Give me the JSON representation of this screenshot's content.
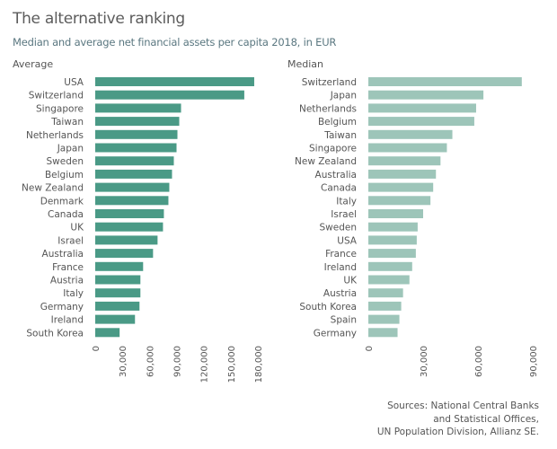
{
  "title": "The alternative ranking",
  "subtitle": "Median and average net financial assets per capita 2018, in EUR",
  "sources": [
    "Sources: National Central Banks",
    "and Statistical Offices,",
    "UN Population Division, Allianz SE."
  ],
  "colors": {
    "average": "#4a9a86",
    "median": "#9dc5b9"
  },
  "chart_data": [
    {
      "type": "bar",
      "orientation": "horizontal",
      "panel_label": "Average",
      "categories": [
        "USA",
        "Switzerland",
        "Singapore",
        "Taiwan",
        "Netherlands",
        "Japan",
        "Sweden",
        "Belgium",
        "New Zealand",
        "Denmark",
        "Canada",
        "UK",
        "Israel",
        "Australia",
        "France",
        "Austria",
        "Italy",
        "Germany",
        "Ireland",
        "South Korea"
      ],
      "values": [
        176000,
        165000,
        95000,
        93000,
        91000,
        90000,
        87000,
        85000,
        82000,
        81000,
        76000,
        75000,
        69000,
        64000,
        53000,
        50000,
        50000,
        49000,
        44000,
        27000
      ],
      "xlim": [
        0,
        180000
      ],
      "ticks": [
        0,
        30000,
        60000,
        90000,
        120000,
        150000,
        180000
      ],
      "tick_labels": [
        "0",
        "30,000",
        "60,000",
        "90,000",
        "120,000",
        "150,000",
        "180,000"
      ],
      "grid": false
    },
    {
      "type": "bar",
      "orientation": "horizontal",
      "panel_label": "Median",
      "categories": [
        "Switzerland",
        "Japan",
        "Netherlands",
        "Belgium",
        "Taiwan",
        "Singapore",
        "New Zealand",
        "Australia",
        "Canada",
        "Italy",
        "Israel",
        "Sweden",
        "USA",
        "France",
        "Ireland",
        "UK",
        "Austria",
        "South Korea",
        "Spain",
        "Germany"
      ],
      "values": [
        84000,
        63000,
        59000,
        58000,
        46000,
        43000,
        39500,
        37000,
        35500,
        34000,
        30000,
        27000,
        26500,
        26000,
        24000,
        22500,
        19000,
        18000,
        17000,
        16000
      ],
      "xlim": [
        0,
        90000
      ],
      "ticks": [
        0,
        30000,
        60000,
        90000
      ],
      "tick_labels": [
        "0",
        "30,000",
        "60,000",
        "90,000"
      ],
      "grid": false
    }
  ]
}
